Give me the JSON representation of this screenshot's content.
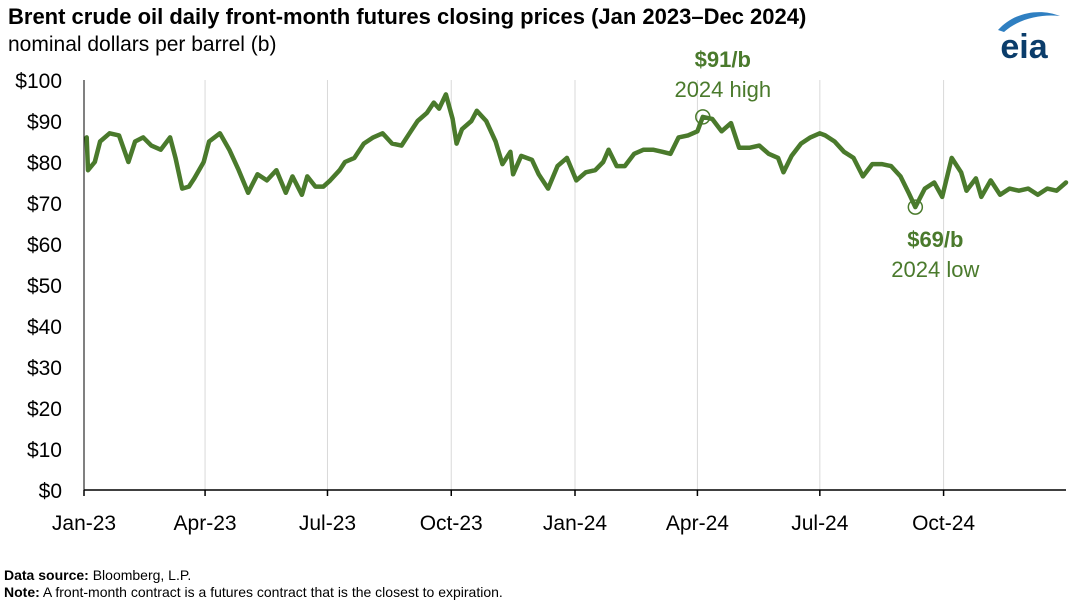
{
  "header": {
    "title": "Brent crude oil daily front-month futures closing prices (Jan 2023–Dec 2024)",
    "subtitle": "nominal dollars per barrel (b)"
  },
  "logo": {
    "text": "eia",
    "color": "#0b5394"
  },
  "footer": {
    "source_label": "Data source:",
    "source_text": "Bloomberg, L.P.",
    "note_label": "Note:",
    "note_text": "A front-month contract is a futures contract that is the closest to expiration."
  },
  "colors": {
    "line": "#4a7a2c",
    "grid": "#d9d9d9",
    "axis": "#000000"
  },
  "chart_data": {
    "type": "line",
    "title": "Brent crude oil daily front-month futures closing prices (Jan 2023–Dec 2024)",
    "ylabel": "nominal dollars per barrel (b)",
    "xlim": [
      "2023-01-01",
      "2024-12-31"
    ],
    "ylim": [
      0,
      100
    ],
    "yticks": [
      0,
      10,
      20,
      30,
      40,
      50,
      60,
      70,
      80,
      90,
      100
    ],
    "ytick_labels": [
      "$0",
      "$10",
      "$20",
      "$30",
      "$40",
      "$50",
      "$60",
      "$70",
      "$80",
      "$90",
      "$100"
    ],
    "xticks": [
      "2023-01-01",
      "2023-04-01",
      "2023-07-01",
      "2023-10-01",
      "2024-01-01",
      "2024-04-01",
      "2024-07-01",
      "2024-10-01"
    ],
    "xtick_labels": [
      "Jan-23",
      "Apr-23",
      "Jul-23",
      "Oct-23",
      "Jan-24",
      "Apr-24",
      "Jul-24",
      "Oct-24"
    ],
    "grid": "vertical",
    "series": [
      {
        "points": [
          [
            "2023-01-03",
            86
          ],
          [
            "2023-01-04",
            78
          ],
          [
            "2023-01-09",
            80
          ],
          [
            "2023-01-13",
            85
          ],
          [
            "2023-01-20",
            87
          ],
          [
            "2023-01-27",
            86.5
          ],
          [
            "2023-02-03",
            80
          ],
          [
            "2023-02-08",
            85
          ],
          [
            "2023-02-14",
            86
          ],
          [
            "2023-02-20",
            84
          ],
          [
            "2023-02-27",
            83
          ],
          [
            "2023-03-06",
            86
          ],
          [
            "2023-03-10",
            81
          ],
          [
            "2023-03-15",
            73.5
          ],
          [
            "2023-03-20",
            74
          ],
          [
            "2023-03-24",
            76
          ],
          [
            "2023-03-31",
            80
          ],
          [
            "2023-04-04",
            85
          ],
          [
            "2023-04-12",
            87
          ],
          [
            "2023-04-19",
            83
          ],
          [
            "2023-04-26",
            78
          ],
          [
            "2023-05-03",
            72.5
          ],
          [
            "2023-05-10",
            77
          ],
          [
            "2023-05-17",
            75.5
          ],
          [
            "2023-05-24",
            78
          ],
          [
            "2023-05-31",
            72.5
          ],
          [
            "2023-06-05",
            76.5
          ],
          [
            "2023-06-12",
            72
          ],
          [
            "2023-06-16",
            76.5
          ],
          [
            "2023-06-22",
            74
          ],
          [
            "2023-06-28",
            74
          ],
          [
            "2023-07-03",
            75.5
          ],
          [
            "2023-07-10",
            78
          ],
          [
            "2023-07-14",
            80
          ],
          [
            "2023-07-21",
            81
          ],
          [
            "2023-07-28",
            84.5
          ],
          [
            "2023-08-04",
            86
          ],
          [
            "2023-08-11",
            87
          ],
          [
            "2023-08-18",
            84.5
          ],
          [
            "2023-08-25",
            84
          ],
          [
            "2023-08-31",
            87
          ],
          [
            "2023-09-06",
            90
          ],
          [
            "2023-09-13",
            92
          ],
          [
            "2023-09-18",
            94.5
          ],
          [
            "2023-09-22",
            93
          ],
          [
            "2023-09-27",
            96.5
          ],
          [
            "2023-10-02",
            90.5
          ],
          [
            "2023-10-05",
            84.5
          ],
          [
            "2023-10-09",
            88
          ],
          [
            "2023-10-16",
            90
          ],
          [
            "2023-10-20",
            92.5
          ],
          [
            "2023-10-27",
            90
          ],
          [
            "2023-11-03",
            85
          ],
          [
            "2023-11-08",
            79.5
          ],
          [
            "2023-11-14",
            82.5
          ],
          [
            "2023-11-16",
            77
          ],
          [
            "2023-11-22",
            81.5
          ],
          [
            "2023-11-30",
            80.5
          ],
          [
            "2023-12-05",
            77
          ],
          [
            "2023-12-12",
            73.5
          ],
          [
            "2023-12-19",
            79
          ],
          [
            "2023-12-26",
            81
          ],
          [
            "2024-01-02",
            75.5
          ],
          [
            "2024-01-09",
            77.5
          ],
          [
            "2024-01-16",
            78
          ],
          [
            "2024-01-22",
            80
          ],
          [
            "2024-01-26",
            83
          ],
          [
            "2024-02-01",
            79
          ],
          [
            "2024-02-07",
            79
          ],
          [
            "2024-02-14",
            82
          ],
          [
            "2024-02-21",
            83
          ],
          [
            "2024-02-28",
            83
          ],
          [
            "2024-03-06",
            82.5
          ],
          [
            "2024-03-12",
            82
          ],
          [
            "2024-03-18",
            86
          ],
          [
            "2024-03-25",
            86.5
          ],
          [
            "2024-04-01",
            87.5
          ],
          [
            "2024-04-05",
            91
          ],
          [
            "2024-04-12",
            90.5
          ],
          [
            "2024-04-19",
            87.5
          ],
          [
            "2024-04-26",
            89.5
          ],
          [
            "2024-05-02",
            83.5
          ],
          [
            "2024-05-10",
            83.5
          ],
          [
            "2024-05-17",
            84
          ],
          [
            "2024-05-24",
            82
          ],
          [
            "2024-05-31",
            81
          ],
          [
            "2024-06-04",
            77.5
          ],
          [
            "2024-06-10",
            81.5
          ],
          [
            "2024-06-17",
            84.5
          ],
          [
            "2024-06-24",
            86
          ],
          [
            "2024-07-01",
            87
          ],
          [
            "2024-07-05",
            86.5
          ],
          [
            "2024-07-12",
            85
          ],
          [
            "2024-07-19",
            82.5
          ],
          [
            "2024-07-26",
            81
          ],
          [
            "2024-08-02",
            76.5
          ],
          [
            "2024-08-09",
            79.5
          ],
          [
            "2024-08-16",
            79.5
          ],
          [
            "2024-08-23",
            79
          ],
          [
            "2024-08-30",
            76.5
          ],
          [
            "2024-09-05",
            72.5
          ],
          [
            "2024-09-10",
            69
          ],
          [
            "2024-09-17",
            73.5
          ],
          [
            "2024-09-24",
            75
          ],
          [
            "2024-09-30",
            71.5
          ],
          [
            "2024-10-07",
            81
          ],
          [
            "2024-10-14",
            77.5
          ],
          [
            "2024-10-18",
            73
          ],
          [
            "2024-10-25",
            76
          ],
          [
            "2024-10-29",
            71.5
          ],
          [
            "2024-11-05",
            75.5
          ],
          [
            "2024-11-12",
            72
          ],
          [
            "2024-11-19",
            73.5
          ],
          [
            "2024-11-26",
            73
          ],
          [
            "2024-12-03",
            73.5
          ],
          [
            "2024-12-10",
            72
          ],
          [
            "2024-12-17",
            73.5
          ],
          [
            "2024-12-24",
            73
          ],
          [
            "2024-12-31",
            75
          ]
        ]
      }
    ],
    "annotations": [
      {
        "date": "2024-04-05",
        "value": 91,
        "label": "$91/b",
        "sublabel": "2024 high",
        "placement": "above"
      },
      {
        "date": "2024-09-10",
        "value": 69,
        "label": "$69/b",
        "sublabel": "2024 low",
        "placement": "below"
      }
    ]
  }
}
